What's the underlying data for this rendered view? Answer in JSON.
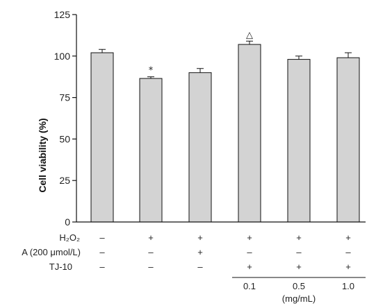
{
  "chart_data": {
    "type": "bar",
    "ylabel": "Cell viability (%)",
    "ylim": [
      0,
      125
    ],
    "yticks": [
      0,
      25,
      50,
      75,
      100,
      125
    ],
    "bar_color": "#d3d3d3",
    "values": [
      102,
      86.5,
      90,
      107,
      98,
      99
    ],
    "errors": [
      2,
      1,
      2.5,
      2,
      2,
      3
    ],
    "markers": [
      "",
      "*",
      "",
      "△",
      "",
      ""
    ],
    "conditions": [
      {
        "label": "H₂O₂",
        "signs": [
          "–",
          "+",
          "+",
          "+",
          "+",
          "+"
        ]
      },
      {
        "label": "A (200 μmol/L)",
        "signs": [
          "–",
          "–",
          "+",
          "–",
          "–",
          "–"
        ]
      },
      {
        "label": "TJ-10",
        "signs": [
          "–",
          "–",
          "–",
          "+",
          "+",
          "+"
        ]
      }
    ],
    "concentrations": [
      "0.1",
      "0.5",
      "1.0"
    ],
    "concentration_unit": "(mg/mL)"
  }
}
